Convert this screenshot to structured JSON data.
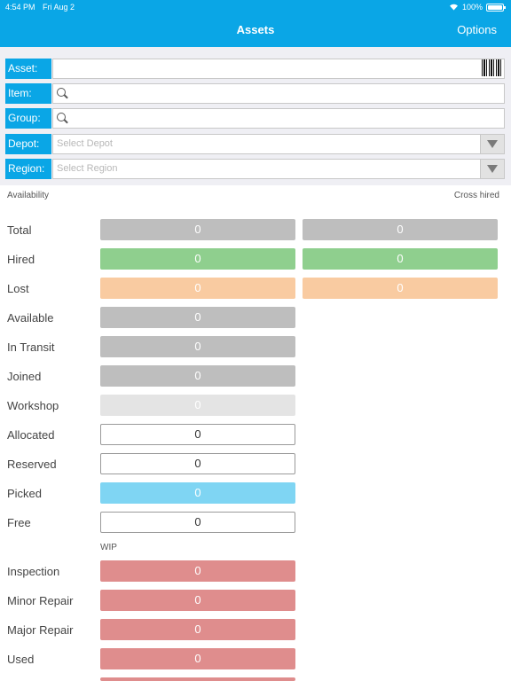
{
  "status_bar": {
    "time": "4:54 PM",
    "date": "Fri Aug 2",
    "battery": "100%"
  },
  "nav": {
    "title": "Assets",
    "options_label": "Options"
  },
  "filters": {
    "asset": {
      "label": "Asset:",
      "value": ""
    },
    "item": {
      "label": "Item:",
      "value": ""
    },
    "group": {
      "label": "Group:",
      "value": ""
    },
    "depot": {
      "label": "Depot:",
      "placeholder": "Select Depot"
    },
    "region": {
      "label": "Region:",
      "placeholder": "Select Region"
    }
  },
  "sections": {
    "availability": "Availability",
    "cross_hired": "Cross hired",
    "wip": "WIP"
  },
  "rows": {
    "total": {
      "label": "Total",
      "value": "0",
      "cross": "0"
    },
    "hired": {
      "label": "Hired",
      "value": "0",
      "cross": "0"
    },
    "lost": {
      "label": "Lost",
      "value": "0",
      "cross": "0"
    },
    "available": {
      "label": "Available",
      "value": "0"
    },
    "in_transit": {
      "label": "In Transit",
      "value": "0"
    },
    "joined": {
      "label": "Joined",
      "value": "0"
    },
    "workshop": {
      "label": "Workshop",
      "value": "0"
    },
    "allocated": {
      "label": "Allocated",
      "value": "0"
    },
    "reserved": {
      "label": "Reserved",
      "value": "0"
    },
    "picked": {
      "label": "Picked",
      "value": "0"
    },
    "free": {
      "label": "Free",
      "value": "0"
    },
    "inspection": {
      "label": "Inspection",
      "value": "0"
    },
    "minor_repair": {
      "label": "Minor Repair",
      "value": "0"
    },
    "major_repair": {
      "label": "Major Repair",
      "value": "0"
    },
    "used": {
      "label": "Used",
      "value": "0"
    }
  },
  "colors": {
    "accent": "#0aa6e6",
    "grey": "#bebebe",
    "green": "#8fcf8e",
    "orange": "#f9cba1",
    "light_grey": "#e4e4e4",
    "blue": "#7fd5f3",
    "red": "#df8d8d"
  },
  "icons": {
    "wifi": "wifi-icon",
    "battery": "battery-icon",
    "barcode": "barcode-icon",
    "search": "search-icon",
    "dropdown": "chevron-down-icon"
  }
}
